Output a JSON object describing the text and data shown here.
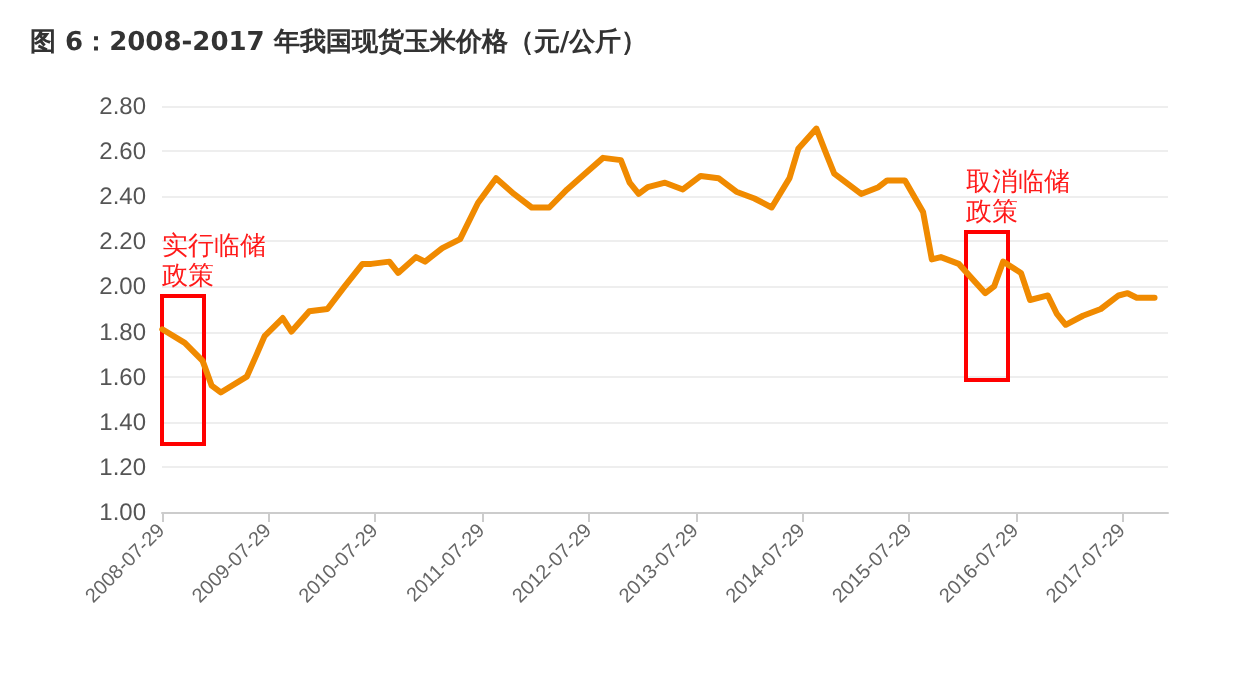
{
  "chart_data": {
    "type": "line",
    "title": "图 6：2008-2017 年我国现货玉米价格（元/公斤）",
    "x": [
      "2008-07-30",
      "2008-10",
      "2008-12",
      "2009-01",
      "2009-02",
      "2009-05",
      "2009-06",
      "2009-07",
      "2009-09",
      "2009-10",
      "2009-12",
      "2010-02",
      "2010-04",
      "2010-06",
      "2010-07",
      "2010-09",
      "2010-10",
      "2010-12",
      "2011-01",
      "2011-03",
      "2011-05",
      "2011-07",
      "2011-09",
      "2011-11",
      "2012-01",
      "2012-03",
      "2012-05",
      "2012-07",
      "2012-09",
      "2012-11",
      "2012-12",
      "2013-01",
      "2013-02",
      "2013-04",
      "2013-06",
      "2013-08",
      "2013-10",
      "2013-12",
      "2014-02",
      "2014-04",
      "2014-06",
      "2014-07",
      "2014-09",
      "2014-10",
      "2014-11",
      "2015-02",
      "2015-04",
      "2015-05",
      "2015-07",
      "2015-09",
      "2015-10",
      "2015-11",
      "2016-01",
      "2016-04",
      "2016-05",
      "2016-06",
      "2016-08",
      "2016-09",
      "2016-11",
      "2016-12",
      "2017-01",
      "2017-03",
      "2017-05",
      "2017-07",
      "2017-08",
      "2017-09",
      "2017-11"
    ],
    "series": [
      {
        "color": "#f08a00",
        "values": [
          1.81,
          1.75,
          1.67,
          1.56,
          1.53,
          1.6,
          1.69,
          1.78,
          1.86,
          1.8,
          1.89,
          1.9,
          2.0,
          2.1,
          2.1,
          2.11,
          2.06,
          2.13,
          2.11,
          2.17,
          2.21,
          2.37,
          2.48,
          2.41,
          2.35,
          2.35,
          2.43,
          2.5,
          2.57,
          2.56,
          2.46,
          2.41,
          2.44,
          2.46,
          2.43,
          2.49,
          2.48,
          2.42,
          2.39,
          2.35,
          2.48,
          2.61,
          2.7,
          2.6,
          2.5,
          2.41,
          2.44,
          2.47,
          2.47,
          2.33,
          2.12,
          2.13,
          2.1,
          1.97,
          2.0,
          2.11,
          2.06,
          1.94,
          1.96,
          1.88,
          1.83,
          1.87,
          1.9,
          1.96,
          1.97,
          1.95,
          1.95
        ]
      }
    ],
    "xlim": [
      "2008-07-29",
      "2017-12-31"
    ],
    "xticks": [
      "2008-07-29",
      "2009-07-29",
      "2010-07-29",
      "2011-07-29",
      "2012-07-29",
      "2013-07-29",
      "2014-07-29",
      "2015-07-29",
      "2016-07-29",
      "2017-07-29"
    ],
    "ylim": [
      1.0,
      2.8
    ],
    "yticks": [
      {
        "value": 1.0,
        "label": "1.00"
      },
      {
        "value": 1.2,
        "label": "1.20"
      },
      {
        "value": 1.4,
        "label": "1.40"
      },
      {
        "value": 1.6,
        "label": "1.60"
      },
      {
        "value": 1.8,
        "label": "1.80"
      },
      {
        "value": 2.0,
        "label": "2.00"
      },
      {
        "value": 2.2,
        "label": "2.20"
      },
      {
        "value": 2.4,
        "label": "2.40"
      },
      {
        "value": 2.6,
        "label": "2.60"
      },
      {
        "value": 2.8,
        "label": "2.80"
      }
    ],
    "grid": "y",
    "marker": "none",
    "line_style": "solid",
    "annotations": [
      "实行临储政策",
      "取消临储政策"
    ]
  }
}
